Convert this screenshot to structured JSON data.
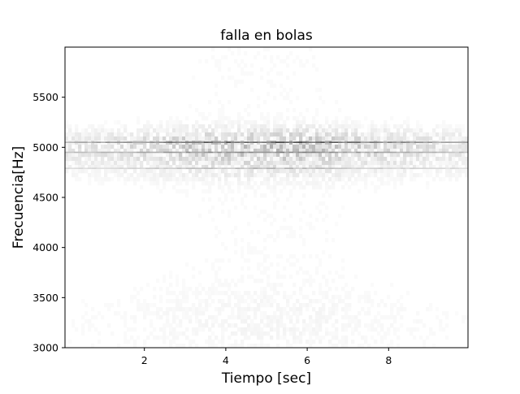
{
  "chart_data": {
    "type": "heatmap",
    "title": "falla en bolas",
    "xlabel": "Tiempo [sec]",
    "ylabel": "Frecuencia[Hz]",
    "xlim": [
      0.05,
      9.95
    ],
    "ylim": [
      3000,
      6000
    ],
    "x_ticks": [
      2,
      4,
      6,
      8
    ],
    "y_ticks": [
      3000,
      3500,
      4000,
      4500,
      5000,
      5500
    ],
    "x_tick_labels": [
      "2",
      "4",
      "6",
      "8"
    ],
    "y_tick_labels": [
      "3000",
      "3500",
      "4000",
      "4500",
      "5000",
      "5500"
    ],
    "colormap": "grayscale (white = low, black = high)",
    "grid": false,
    "legend": "none",
    "features": [
      {
        "frequency": 5050,
        "intensity": 0.85
      },
      {
        "frequency": 4950,
        "intensity": 0.6
      },
      {
        "frequency": 4790,
        "intensity": 0.35
      }
    ],
    "peak_time": 5.0
  }
}
